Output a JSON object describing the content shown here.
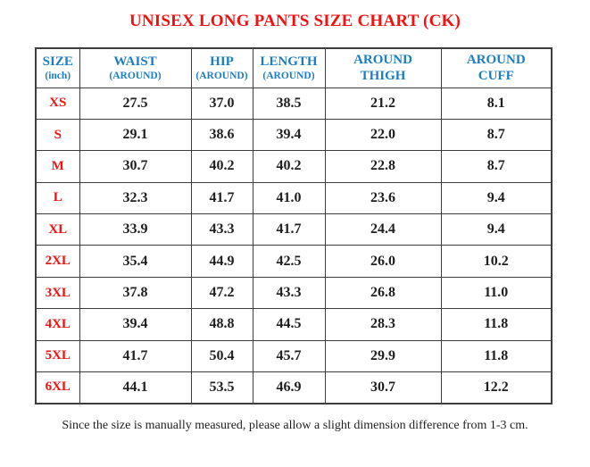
{
  "title": "UNISEX LONG PANTS SIZE CHART (CK)",
  "footer_note": "Since the size is manually measured, please allow a slight dimension difference from 1-3 cm.",
  "colors": {
    "title-red": "#f21010",
    "header-blue": "#1b7ec2",
    "size-red": "#f21010",
    "body-text": "#1f1f1f",
    "border": "#3d3d3d"
  },
  "table": {
    "columns": [
      {
        "line1": "SIZE",
        "line2": "(inch)"
      },
      {
        "line1": "WAIST",
        "line2": "(AROUND)"
      },
      {
        "line1": "HIP",
        "line2": "(AROUND)"
      },
      {
        "line1": "LENGTH",
        "line2": "(AROUND)"
      },
      {
        "line1": "AROUND",
        "line2": "THIGH"
      },
      {
        "line1": "AROUND",
        "line2": "CUFF"
      }
    ],
    "rows": [
      {
        "size": "XS",
        "values": [
          "27.5",
          "37.0",
          "38.5",
          "21.2",
          "8.1"
        ]
      },
      {
        "size": "S",
        "values": [
          "29.1",
          "38.6",
          "39.4",
          "22.0",
          "8.7"
        ]
      },
      {
        "size": "M",
        "values": [
          "30.7",
          "40.2",
          "40.2",
          "22.8",
          "8.7"
        ]
      },
      {
        "size": "L",
        "values": [
          "32.3",
          "41.7",
          "41.0",
          "23.6",
          "9.4"
        ]
      },
      {
        "size": "XL",
        "values": [
          "33.9",
          "43.3",
          "41.7",
          "24.4",
          "9.4"
        ]
      },
      {
        "size": "2XL",
        "values": [
          "35.4",
          "44.9",
          "42.5",
          "26.0",
          "10.2"
        ]
      },
      {
        "size": "3XL",
        "values": [
          "37.8",
          "47.2",
          "43.3",
          "26.8",
          "11.0"
        ]
      },
      {
        "size": "4XL",
        "values": [
          "39.4",
          "48.8",
          "44.5",
          "28.3",
          "11.8"
        ]
      },
      {
        "size": "5XL",
        "values": [
          "41.7",
          "50.4",
          "45.7",
          "29.9",
          "11.8"
        ]
      },
      {
        "size": "6XL",
        "values": [
          "44.1",
          "53.5",
          "46.9",
          "30.7",
          "12.2"
        ]
      }
    ]
  }
}
